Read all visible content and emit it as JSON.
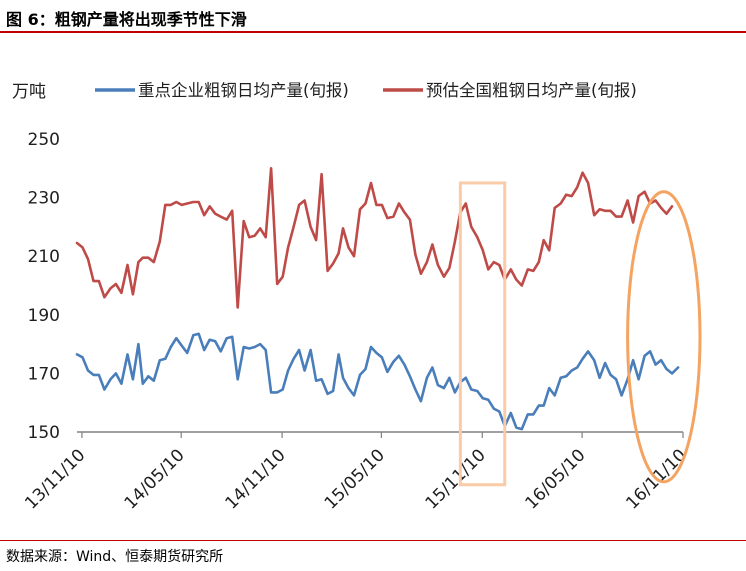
{
  "figure": {
    "title": "图 6：粗钢产量将出现季节性下滑",
    "source": "数据来源：Wind、恒泰期货研究所"
  },
  "colors": {
    "blue": "#4a7ebb",
    "red": "#be4b48",
    "highlight_rect": "#f9cba8",
    "highlight_ellipse": "#f4a460",
    "axis": "#808080",
    "rule": "#c00000"
  },
  "chart_data": {
    "type": "line",
    "ylabel": "万吨",
    "ylim": [
      150,
      250
    ],
    "yticks": [
      150,
      170,
      190,
      210,
      230,
      250
    ],
    "xlim": [
      "2013-11-01",
      "2016-11-10"
    ],
    "xticks": [
      {
        "date": "2013-11-10",
        "label": "13/11/10"
      },
      {
        "date": "2014-05-10",
        "label": "14/05/10"
      },
      {
        "date": "2014-11-10",
        "label": "14/11/10"
      },
      {
        "date": "2015-05-10",
        "label": "15/05/10"
      },
      {
        "date": "2015-11-10",
        "label": "15/11/10"
      },
      {
        "date": "2016-05-10",
        "label": "16/05/10"
      },
      {
        "date": "2016-11-10",
        "label": "16/11/10"
      }
    ],
    "legend_position": "top",
    "series": [
      {
        "name": "重点企业粗钢日均产量(旬报)",
        "color": "#4a7ebb",
        "points": [
          [
            "2013-11-01",
            176.5
          ],
          [
            "2013-11-11",
            175.5
          ],
          [
            "2013-11-21",
            171
          ],
          [
            "2013-12-01",
            169.5
          ],
          [
            "2013-12-11",
            169.5
          ],
          [
            "2013-12-21",
            164.5
          ],
          [
            "2014-01-01",
            168
          ],
          [
            "2014-01-11",
            170
          ],
          [
            "2014-01-21",
            166.5
          ],
          [
            "2014-02-01",
            176.5
          ],
          [
            "2014-02-11",
            168
          ],
          [
            "2014-02-21",
            180
          ],
          [
            "2014-03-01",
            166.5
          ],
          [
            "2014-03-11",
            169
          ],
          [
            "2014-03-21",
            167.5
          ],
          [
            "2014-04-01",
            174.5
          ],
          [
            "2014-04-11",
            175
          ],
          [
            "2014-04-21",
            179
          ],
          [
            "2014-05-01",
            182
          ],
          [
            "2014-05-11",
            179.5
          ],
          [
            "2014-05-21",
            177
          ],
          [
            "2014-06-01",
            183
          ],
          [
            "2014-06-11",
            183.5
          ],
          [
            "2014-06-21",
            178
          ],
          [
            "2014-07-01",
            181.5
          ],
          [
            "2014-07-11",
            181
          ],
          [
            "2014-07-21",
            177.5
          ],
          [
            "2014-08-01",
            182
          ],
          [
            "2014-08-11",
            182.5
          ],
          [
            "2014-08-21",
            168
          ],
          [
            "2014-09-01",
            179
          ],
          [
            "2014-09-11",
            178.5
          ],
          [
            "2014-09-21",
            179
          ],
          [
            "2014-10-01",
            180
          ],
          [
            "2014-10-11",
            178
          ],
          [
            "2014-10-21",
            163.5
          ],
          [
            "2014-11-01",
            163.5
          ],
          [
            "2014-11-11",
            164.5
          ],
          [
            "2014-11-21",
            171
          ],
          [
            "2014-12-01",
            175
          ],
          [
            "2014-12-11",
            178
          ],
          [
            "2014-12-21",
            171
          ],
          [
            "2015-01-01",
            178
          ],
          [
            "2015-01-11",
            167.5
          ],
          [
            "2015-01-21",
            168
          ],
          [
            "2015-02-01",
            163
          ],
          [
            "2015-02-11",
            164
          ],
          [
            "2015-02-21",
            176.5
          ],
          [
            "2015-03-01",
            168.5
          ],
          [
            "2015-03-11",
            165
          ],
          [
            "2015-03-21",
            162.5
          ],
          [
            "2015-04-01",
            169.5
          ],
          [
            "2015-04-11",
            171.5
          ],
          [
            "2015-04-21",
            179
          ],
          [
            "2015-05-01",
            177
          ],
          [
            "2015-05-11",
            175.5
          ],
          [
            "2015-05-21",
            170.5
          ],
          [
            "2015-06-01",
            174
          ],
          [
            "2015-06-11",
            176
          ],
          [
            "2015-06-21",
            173
          ],
          [
            "2015-07-01",
            169
          ],
          [
            "2015-07-11",
            164.5
          ],
          [
            "2015-07-21",
            160.5
          ],
          [
            "2015-08-01",
            168.5
          ],
          [
            "2015-08-11",
            172
          ],
          [
            "2015-08-21",
            166
          ],
          [
            "2015-09-01",
            165
          ],
          [
            "2015-09-11",
            168.5
          ],
          [
            "2015-09-21",
            163.5
          ],
          [
            "2015-10-01",
            167
          ],
          [
            "2015-10-11",
            168.5
          ],
          [
            "2015-10-21",
            164.5
          ],
          [
            "2015-11-01",
            164
          ],
          [
            "2015-11-11",
            161.5
          ],
          [
            "2015-11-21",
            161
          ],
          [
            "2015-12-01",
            158
          ],
          [
            "2015-12-11",
            157
          ],
          [
            "2015-12-21",
            152
          ],
          [
            "2016-01-01",
            156.5
          ],
          [
            "2016-01-11",
            151.5
          ],
          [
            "2016-01-21",
            151
          ],
          [
            "2016-02-01",
            156
          ],
          [
            "2016-02-11",
            156
          ],
          [
            "2016-02-21",
            159
          ],
          [
            "2016-03-01",
            159
          ],
          [
            "2016-03-11",
            165
          ],
          [
            "2016-03-21",
            162.5
          ],
          [
            "2016-04-01",
            168.5
          ],
          [
            "2016-04-11",
            169
          ],
          [
            "2016-04-21",
            171
          ],
          [
            "2016-05-01",
            172
          ],
          [
            "2016-05-11",
            175
          ],
          [
            "2016-05-21",
            177.5
          ],
          [
            "2016-06-01",
            174.5
          ],
          [
            "2016-06-11",
            168.5
          ],
          [
            "2016-06-21",
            173.5
          ],
          [
            "2016-07-01",
            169.5
          ],
          [
            "2016-07-11",
            168
          ],
          [
            "2016-07-21",
            162.5
          ],
          [
            "2016-08-01",
            168
          ],
          [
            "2016-08-11",
            174.5
          ],
          [
            "2016-08-21",
            168
          ],
          [
            "2016-09-01",
            176
          ],
          [
            "2016-09-11",
            177.5
          ],
          [
            "2016-09-21",
            173
          ],
          [
            "2016-10-01",
            174.5
          ],
          [
            "2016-10-11",
            171.5
          ],
          [
            "2016-10-21",
            170
          ],
          [
            "2016-11-01",
            172
          ]
        ]
      },
      {
        "name": "预估全国粗钢日均产量(旬报)",
        "color": "#be4b48",
        "points": [
          [
            "2013-11-01",
            214.5
          ],
          [
            "2013-11-11",
            213
          ],
          [
            "2013-11-21",
            209
          ],
          [
            "2013-12-01",
            201.5
          ],
          [
            "2013-12-11",
            201.5
          ],
          [
            "2013-12-21",
            196
          ],
          [
            "2014-01-01",
            199
          ],
          [
            "2014-01-11",
            200.5
          ],
          [
            "2014-01-21",
            197.5
          ],
          [
            "2014-02-01",
            207
          ],
          [
            "2014-02-11",
            197
          ],
          [
            "2014-02-21",
            208
          ],
          [
            "2014-03-01",
            209.5
          ],
          [
            "2014-03-11",
            209.5
          ],
          [
            "2014-03-21",
            208
          ],
          [
            "2014-04-01",
            215
          ],
          [
            "2014-04-11",
            227.5
          ],
          [
            "2014-04-21",
            227.5
          ],
          [
            "2014-05-01",
            228.5
          ],
          [
            "2014-05-11",
            227.5
          ],
          [
            "2014-05-21",
            228
          ],
          [
            "2014-06-01",
            228.5
          ],
          [
            "2014-06-11",
            228.5
          ],
          [
            "2014-06-21",
            224
          ],
          [
            "2014-07-01",
            227
          ],
          [
            "2014-07-11",
            224.5
          ],
          [
            "2014-07-21",
            223.5
          ],
          [
            "2014-08-01",
            222.5
          ],
          [
            "2014-08-11",
            225.5
          ],
          [
            "2014-08-21",
            192.5
          ],
          [
            "2014-09-01",
            222
          ],
          [
            "2014-09-11",
            216.5
          ],
          [
            "2014-09-21",
            217
          ],
          [
            "2014-10-01",
            219.5
          ],
          [
            "2014-10-11",
            216.5
          ],
          [
            "2014-10-21",
            240
          ],
          [
            "2014-11-01",
            200.5
          ],
          [
            "2014-11-11",
            203
          ],
          [
            "2014-11-21",
            213
          ],
          [
            "2014-12-01",
            220
          ],
          [
            "2014-12-11",
            227.5
          ],
          [
            "2014-12-21",
            229
          ],
          [
            "2015-01-01",
            220
          ],
          [
            "2015-01-11",
            215.5
          ],
          [
            "2015-01-21",
            238
          ],
          [
            "2015-02-01",
            205
          ],
          [
            "2015-02-11",
            207.5
          ],
          [
            "2015-02-21",
            211
          ],
          [
            "2015-03-01",
            219.5
          ],
          [
            "2015-03-11",
            213
          ],
          [
            "2015-03-21",
            210
          ],
          [
            "2015-04-01",
            226
          ],
          [
            "2015-04-11",
            228
          ],
          [
            "2015-04-21",
            235
          ],
          [
            "2015-05-01",
            227.5
          ],
          [
            "2015-05-11",
            227.5
          ],
          [
            "2015-05-21",
            223
          ],
          [
            "2015-06-01",
            223.5
          ],
          [
            "2015-06-11",
            228
          ],
          [
            "2015-06-21",
            225
          ],
          [
            "2015-07-01",
            222.5
          ],
          [
            "2015-07-11",
            210.5
          ],
          [
            "2015-07-21",
            204
          ],
          [
            "2015-08-01",
            208
          ],
          [
            "2015-08-11",
            214
          ],
          [
            "2015-08-21",
            207
          ],
          [
            "2015-09-01",
            203
          ],
          [
            "2015-09-11",
            206
          ],
          [
            "2015-09-21",
            215
          ],
          [
            "2015-10-01",
            225
          ],
          [
            "2015-10-11",
            228
          ],
          [
            "2015-10-21",
            220
          ],
          [
            "2015-11-01",
            216.5
          ],
          [
            "2015-11-11",
            212
          ],
          [
            "2015-11-21",
            205.5
          ],
          [
            "2015-12-01",
            208
          ],
          [
            "2015-12-11",
            207
          ],
          [
            "2015-12-21",
            202
          ],
          [
            "2016-01-01",
            205.5
          ],
          [
            "2016-01-11",
            202
          ],
          [
            "2016-01-21",
            200
          ],
          [
            "2016-02-01",
            205.5
          ],
          [
            "2016-02-11",
            205
          ],
          [
            "2016-02-21",
            208
          ],
          [
            "2016-03-01",
            215.5
          ],
          [
            "2016-03-11",
            212
          ],
          [
            "2016-03-21",
            226.5
          ],
          [
            "2016-04-01",
            228
          ],
          [
            "2016-04-11",
            231
          ],
          [
            "2016-04-21",
            230.5
          ],
          [
            "2016-05-01",
            233.5
          ],
          [
            "2016-05-11",
            238.5
          ],
          [
            "2016-05-21",
            235
          ],
          [
            "2016-06-01",
            224
          ],
          [
            "2016-06-11",
            226
          ],
          [
            "2016-06-21",
            225.5
          ],
          [
            "2016-07-01",
            225.5
          ],
          [
            "2016-07-11",
            223.5
          ],
          [
            "2016-07-21",
            223.5
          ],
          [
            "2016-08-01",
            229
          ],
          [
            "2016-08-11",
            221.5
          ],
          [
            "2016-08-21",
            230.5
          ],
          [
            "2016-09-01",
            232
          ],
          [
            "2016-09-11",
            228
          ],
          [
            "2016-09-21",
            229
          ],
          [
            "2016-10-01",
            226.5
          ],
          [
            "2016-10-11",
            224.5
          ],
          [
            "2016-10-21",
            227
          ]
        ]
      }
    ],
    "annotations": [
      {
        "type": "rectangle",
        "x_range": [
          "2015-10-01",
          "2015-12-21"
        ],
        "y_range": [
          132,
          235
        ]
      },
      {
        "type": "ellipse",
        "x_range": [
          "2016-08-01",
          "2016-12-11"
        ],
        "y_range": [
          133,
          232
        ]
      }
    ]
  }
}
